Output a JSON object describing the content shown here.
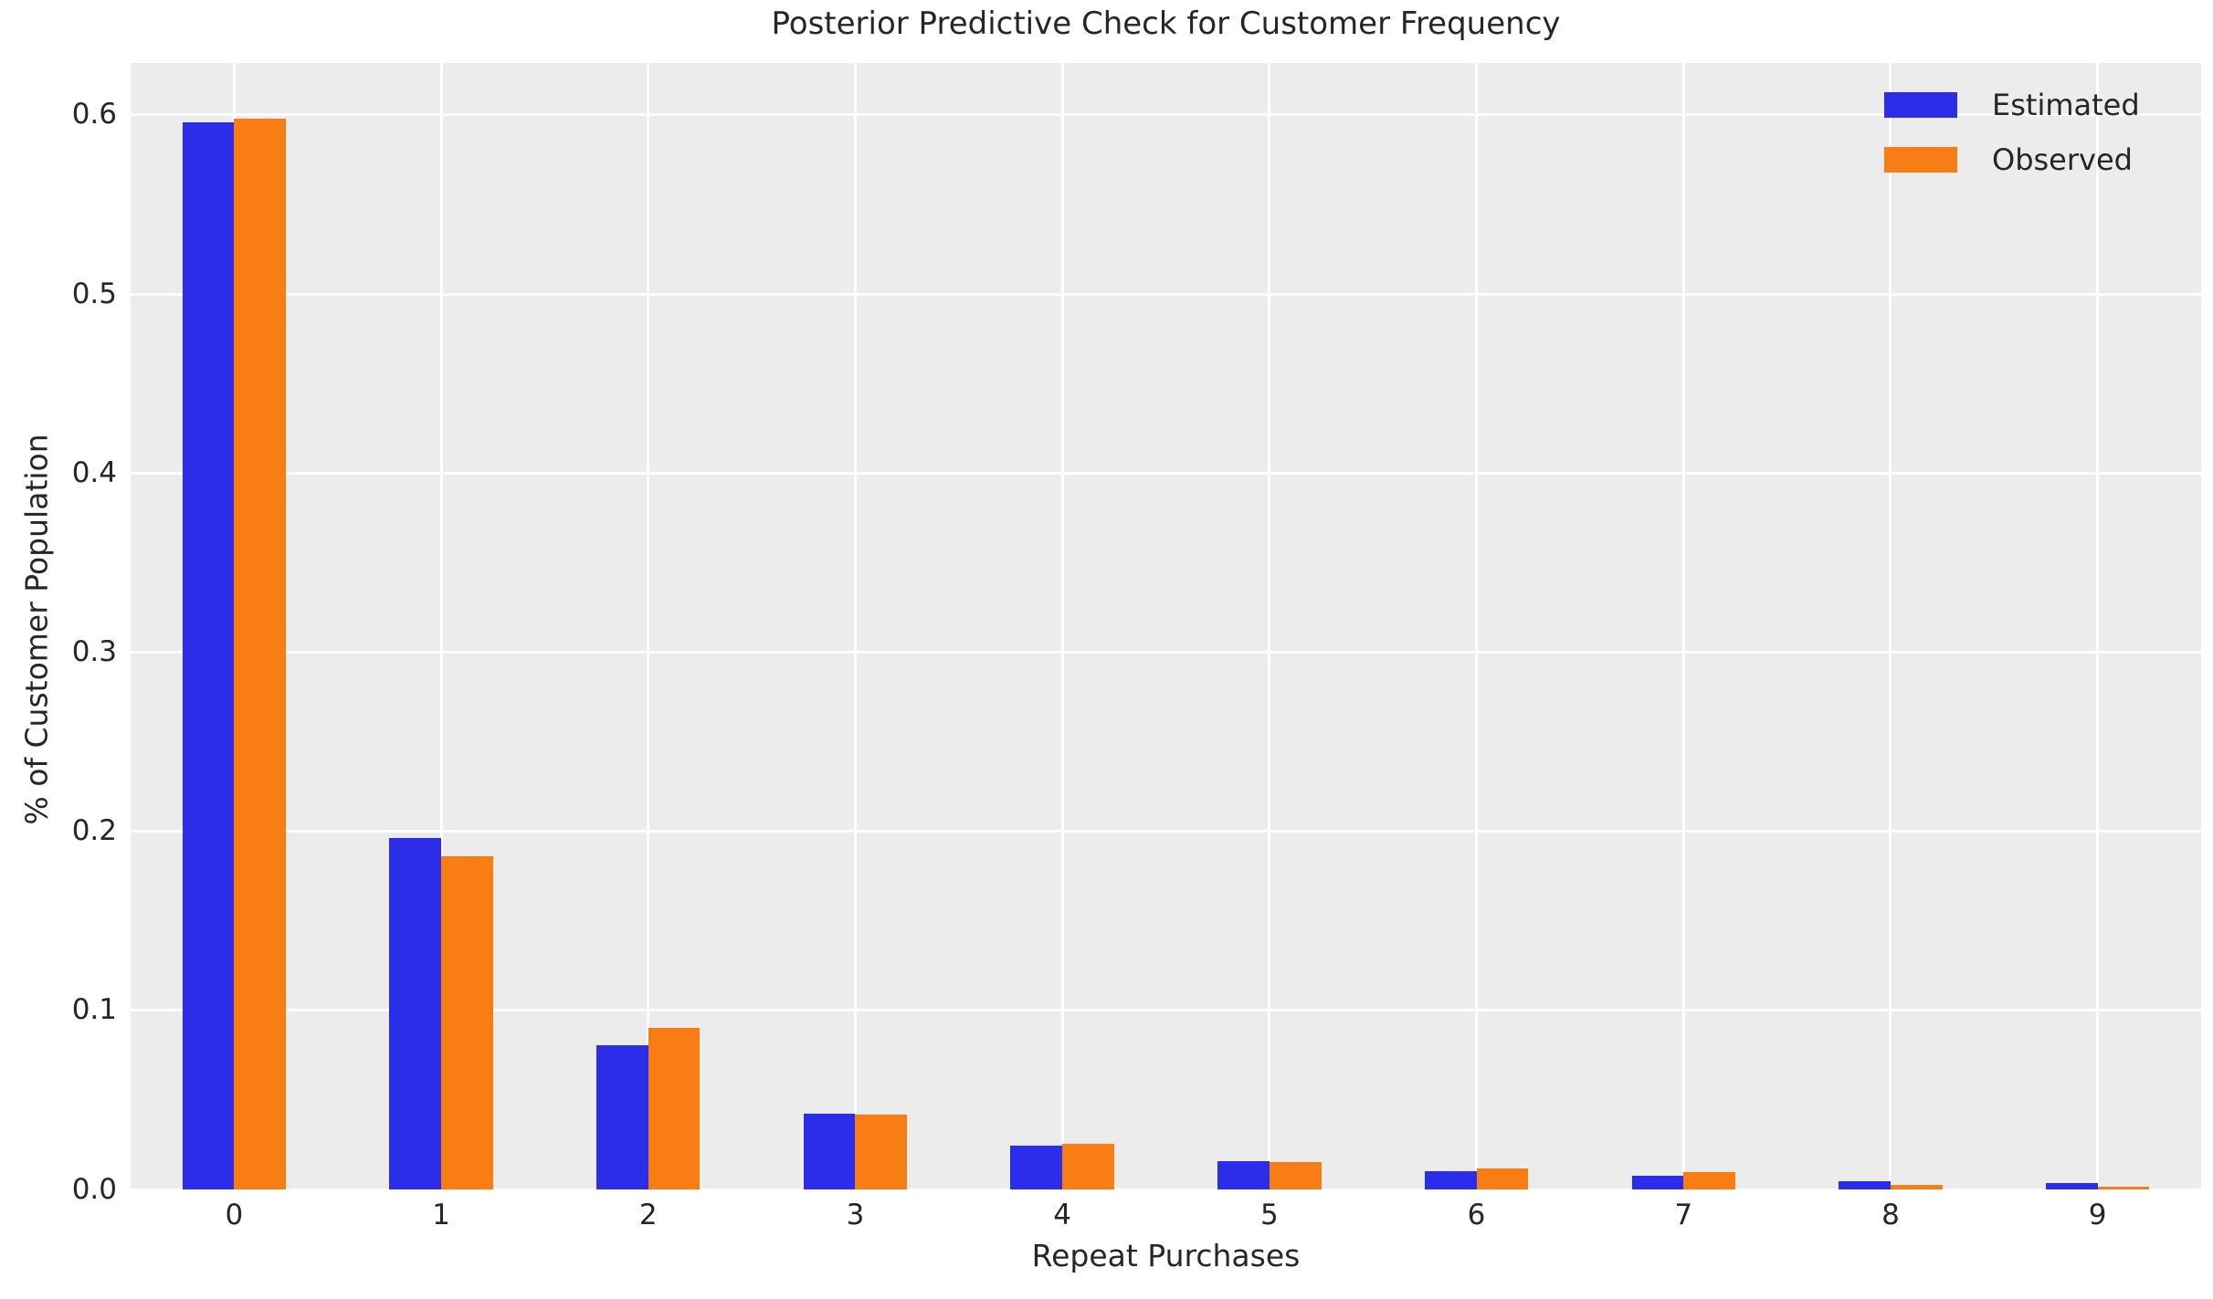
{
  "chart_data": {
    "type": "bar",
    "title": "Posterior Predictive Check for Customer Frequency",
    "xlabel": "Repeat Purchases",
    "ylabel": "% of Customer Population",
    "categories": [
      "0",
      "1",
      "2",
      "3",
      "4",
      "5",
      "6",
      "7",
      "8",
      "9"
    ],
    "series": [
      {
        "name": "Estimated",
        "color": "#2b2de8",
        "values": [
          0.596,
          0.196,
          0.0805,
          0.0423,
          0.0245,
          0.0159,
          0.0103,
          0.0075,
          0.0046,
          0.0036
        ]
      },
      {
        "name": "Observed",
        "color": "#f87d15",
        "values": [
          0.598,
          0.186,
          0.09,
          0.0418,
          0.0256,
          0.0154,
          0.0116,
          0.0095,
          0.0027,
          0.0015
        ]
      }
    ],
    "yticks": [
      0.0,
      0.1,
      0.2,
      0.3,
      0.4,
      0.5,
      0.6
    ],
    "ylim": [
      0,
      0.629
    ],
    "grid": true,
    "legend_position": "upper right",
    "plot_background": "#ececec",
    "grid_color": "#ffffff",
    "text_color": "#262626"
  }
}
